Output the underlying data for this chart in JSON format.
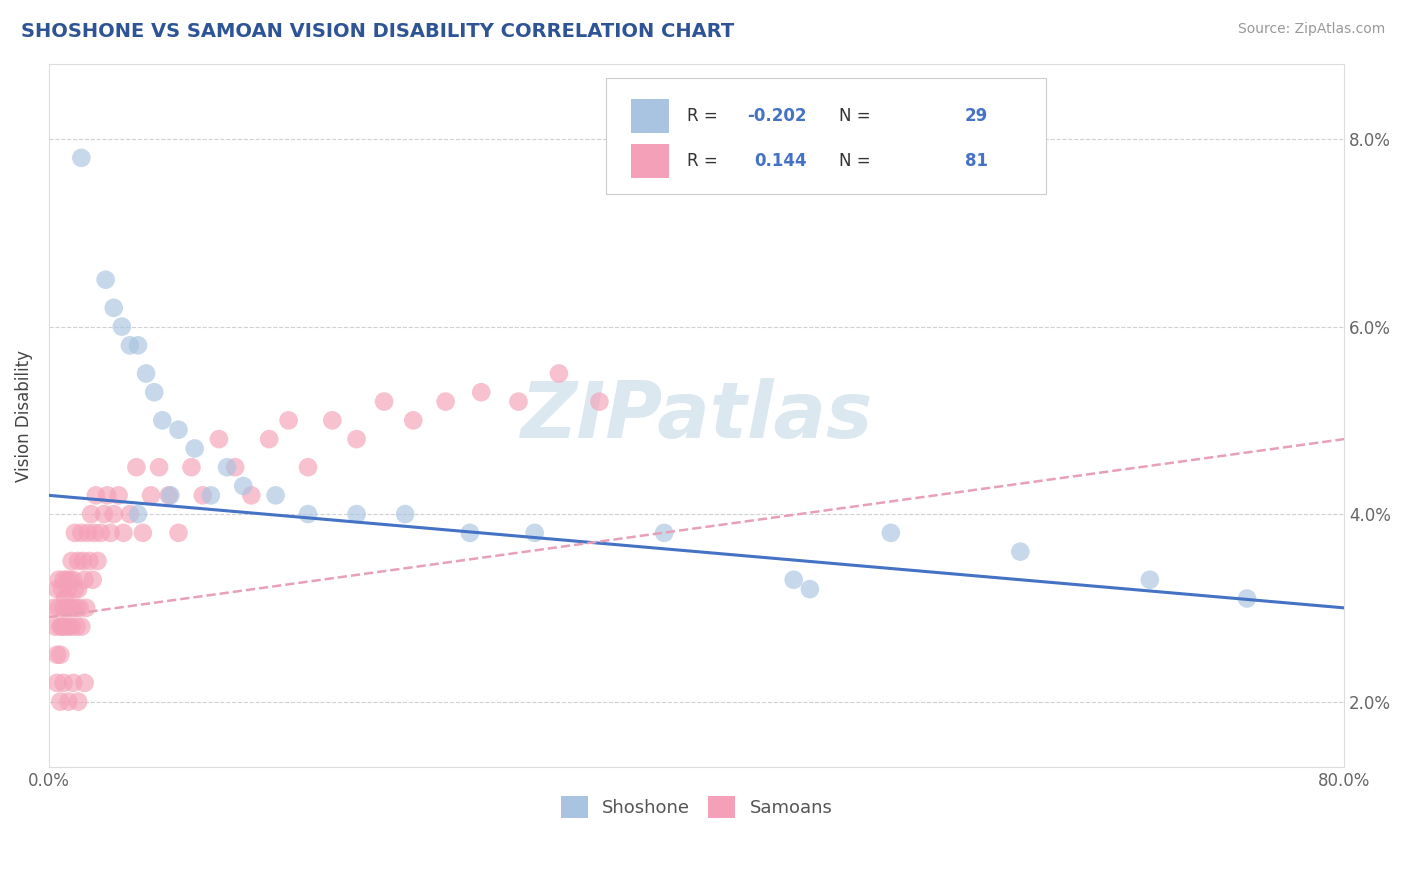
{
  "title": "SHOSHONE VS SAMOAN VISION DISABILITY CORRELATION CHART",
  "source": "Source: ZipAtlas.com",
  "ylabel": "Vision Disability",
  "xlabel": "",
  "xlim": [
    0.0,
    0.8
  ],
  "ylim": [
    0.013,
    0.088
  ],
  "xtick_positions": [
    0.0,
    0.1,
    0.2,
    0.3,
    0.4,
    0.5,
    0.6,
    0.7,
    0.8
  ],
  "xticklabels": [
    "0.0%",
    "",
    "",
    "",
    "",
    "",
    "",
    "",
    "80.0%"
  ],
  "ytick_positions": [
    0.02,
    0.04,
    0.06,
    0.08
  ],
  "yticklabels": [
    "2.0%",
    "4.0%",
    "6.0%",
    "8.0%"
  ],
  "shoshone_R": -0.202,
  "shoshone_N": 29,
  "samoan_R": 0.144,
  "samoan_N": 81,
  "shoshone_color": "#a8c4e0",
  "samoan_color": "#f4a0b8",
  "shoshone_line_color": "#4472c4",
  "samoan_line_color": "#e87090",
  "samoan_dash_color": "#e8a0b8",
  "background_color": "#ffffff",
  "grid_color": "#cccccc",
  "legend_text_color": "#4472c4",
  "title_color": "#2f5496",
  "watermark_color": "#dce8f0",
  "shoshone_x": [
    0.02,
    0.035,
    0.04,
    0.045,
    0.05,
    0.055,
    0.06,
    0.065,
    0.07,
    0.08,
    0.09,
    0.1,
    0.11,
    0.12,
    0.14,
    0.16,
    0.19,
    0.22,
    0.26,
    0.3,
    0.38,
    0.46,
    0.47,
    0.52,
    0.6,
    0.68,
    0.74,
    0.055,
    0.075
  ],
  "shoshone_y": [
    0.078,
    0.065,
    0.062,
    0.06,
    0.058,
    0.058,
    0.055,
    0.053,
    0.05,
    0.049,
    0.047,
    0.042,
    0.045,
    0.043,
    0.042,
    0.04,
    0.04,
    0.04,
    0.038,
    0.038,
    0.038,
    0.033,
    0.032,
    0.038,
    0.036,
    0.033,
    0.031,
    0.04,
    0.042
  ],
  "samoan_x": [
    0.003,
    0.004,
    0.005,
    0.005,
    0.006,
    0.006,
    0.007,
    0.007,
    0.008,
    0.008,
    0.009,
    0.009,
    0.01,
    0.01,
    0.011,
    0.011,
    0.012,
    0.012,
    0.013,
    0.013,
    0.014,
    0.014,
    0.015,
    0.015,
    0.016,
    0.016,
    0.017,
    0.017,
    0.018,
    0.018,
    0.019,
    0.02,
    0.02,
    0.021,
    0.022,
    0.023,
    0.024,
    0.025,
    0.026,
    0.027,
    0.028,
    0.029,
    0.03,
    0.032,
    0.034,
    0.036,
    0.038,
    0.04,
    0.043,
    0.046,
    0.05,
    0.054,
    0.058,
    0.063,
    0.068,
    0.074,
    0.08,
    0.088,
    0.095,
    0.105,
    0.115,
    0.125,
    0.136,
    0.148,
    0.16,
    0.175,
    0.19,
    0.207,
    0.225,
    0.245,
    0.267,
    0.29,
    0.315,
    0.34,
    0.005,
    0.007,
    0.009,
    0.012,
    0.015,
    0.018,
    0.022
  ],
  "samoan_y": [
    0.03,
    0.028,
    0.032,
    0.025,
    0.03,
    0.033,
    0.028,
    0.025,
    0.032,
    0.028,
    0.03,
    0.033,
    0.028,
    0.031,
    0.03,
    0.033,
    0.028,
    0.032,
    0.03,
    0.033,
    0.035,
    0.028,
    0.03,
    0.033,
    0.032,
    0.038,
    0.03,
    0.028,
    0.032,
    0.035,
    0.03,
    0.038,
    0.028,
    0.035,
    0.033,
    0.03,
    0.038,
    0.035,
    0.04,
    0.033,
    0.038,
    0.042,
    0.035,
    0.038,
    0.04,
    0.042,
    0.038,
    0.04,
    0.042,
    0.038,
    0.04,
    0.045,
    0.038,
    0.042,
    0.045,
    0.042,
    0.038,
    0.045,
    0.042,
    0.048,
    0.045,
    0.042,
    0.048,
    0.05,
    0.045,
    0.05,
    0.048,
    0.052,
    0.05,
    0.052,
    0.053,
    0.052,
    0.055,
    0.052,
    0.022,
    0.02,
    0.022,
    0.02,
    0.022,
    0.02,
    0.022
  ]
}
